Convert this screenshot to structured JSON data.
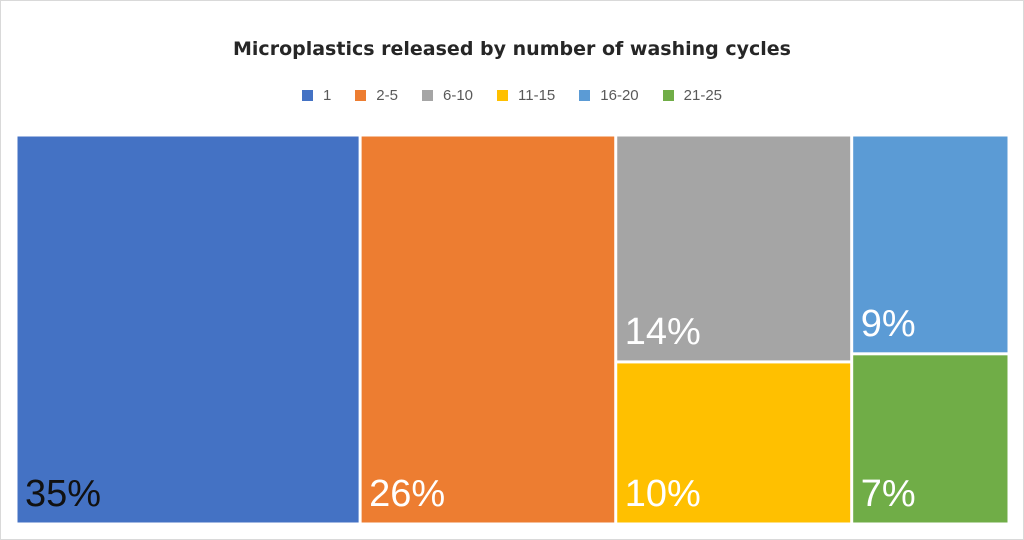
{
  "chart_data": {
    "type": "treemap",
    "title": "Microplastics released by number of washing cycles",
    "legend_position": "top",
    "categories": [
      "1",
      "2-5",
      "6-10",
      "11-15",
      "16-20",
      "21-25"
    ],
    "values": [
      35,
      26,
      14,
      10,
      9,
      7
    ],
    "labels": [
      "35%",
      "26%",
      "14%",
      "10%",
      "9%",
      "7%"
    ],
    "colors": [
      "#4472C4",
      "#ED7D31",
      "#A5A5A5",
      "#FFC000",
      "#5B9BD5",
      "#70AD47"
    ],
    "label_colors": [
      "#111111",
      "#ffffff",
      "#ffffff",
      "#ffffff",
      "#ffffff",
      "#ffffff"
    ],
    "groups": [
      [
        0
      ],
      [
        1
      ],
      [
        2,
        3
      ],
      [
        4,
        5
      ]
    ]
  }
}
